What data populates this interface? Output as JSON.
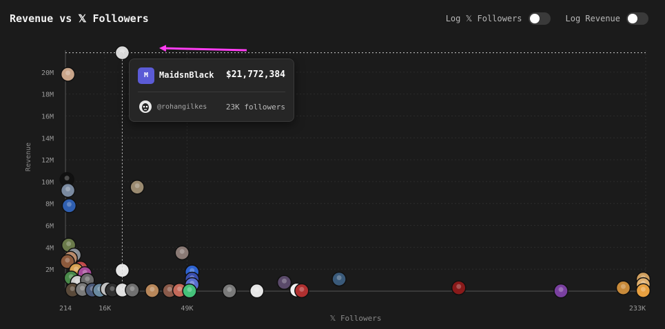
{
  "header": {
    "title": "Revenue vs 𝕏 Followers",
    "toggle_log_followers": "Log 𝕏 Followers",
    "toggle_log_revenue": "Log Revenue"
  },
  "tooltip": {
    "logo_letter": "M",
    "name": "MaidsnBlack",
    "revenue": "$21,772,384",
    "handle": "@rohangilkes",
    "followers": "23K followers"
  },
  "chart_data": {
    "type": "scatter",
    "title": "Revenue vs 𝕏 Followers",
    "xlabel": "𝕏 Followers",
    "ylabel": "Revenue",
    "xlim": [
      214,
      233000
    ],
    "ylim": [
      0,
      22000000
    ],
    "x_scale": "linear",
    "y_scale": "linear",
    "grid": true,
    "x_ticks": [
      {
        "value": 214,
        "label": "214"
      },
      {
        "value": 16000,
        "label": "16K"
      },
      {
        "value": 49000,
        "label": "49K"
      },
      {
        "value": 233000,
        "label": "233K"
      }
    ],
    "y_ticks": [
      {
        "value": 2000000,
        "label": "2M"
      },
      {
        "value": 4000000,
        "label": "4M"
      },
      {
        "value": 6000000,
        "label": "6M"
      },
      {
        "value": 8000000,
        "label": "8M"
      },
      {
        "value": 10000000,
        "label": "10M"
      },
      {
        "value": 12000000,
        "label": "12M"
      },
      {
        "value": 14000000,
        "label": "14M"
      },
      {
        "value": 16000000,
        "label": "16M"
      },
      {
        "value": 18000000,
        "label": "18M"
      },
      {
        "value": 20000000,
        "label": "20M"
      }
    ],
    "highlight": {
      "x": 23000,
      "y": 21772384
    },
    "points": [
      {
        "x": 23000,
        "y": 21772384,
        "color": "#d9d9d9"
      },
      {
        "x": 1200,
        "y": 19800000,
        "color": "#c9a58a"
      },
      {
        "x": 29000,
        "y": 9500000,
        "color": "#9a8a70"
      },
      {
        "x": 800,
        "y": 10200000,
        "color": "#111111"
      },
      {
        "x": 1200,
        "y": 9200000,
        "color": "#7a8aa0"
      },
      {
        "x": 1700,
        "y": 7800000,
        "color": "#2f5fb0"
      },
      {
        "x": 1500,
        "y": 4200000,
        "color": "#6a7a4a"
      },
      {
        "x": 3700,
        "y": 3300000,
        "color": "#8a8f96"
      },
      {
        "x": 2200,
        "y": 3000000,
        "color": "#b98a6a"
      },
      {
        "x": 1000,
        "y": 2700000,
        "color": "#8c5a3c"
      },
      {
        "x": 6300,
        "y": 2100000,
        "color": "#c14b4b"
      },
      {
        "x": 4500,
        "y": 1900000,
        "color": "#d6a050"
      },
      {
        "x": 8000,
        "y": 1600000,
        "color": "#a64a9a"
      },
      {
        "x": 23000,
        "y": 1900000,
        "color": "#e6e6e6"
      },
      {
        "x": 47000,
        "y": 3500000,
        "color": "#8a7a75"
      },
      {
        "x": 51000,
        "y": 1750000,
        "color": "#2e63d0"
      },
      {
        "x": 51000,
        "y": 1100000,
        "color": "#3a4fb0"
      },
      {
        "x": 51000,
        "y": 600000,
        "color": "#5a6fd0"
      },
      {
        "x": 2500,
        "y": 1200000,
        "color": "#4a8a4a"
      },
      {
        "x": 5000,
        "y": 800000,
        "color": "#d0d0d0"
      },
      {
        "x": 9000,
        "y": 1000000,
        "color": "#6a6a6a"
      },
      {
        "x": 3000,
        "y": 100000,
        "color": "#5a4a3a"
      },
      {
        "x": 7000,
        "y": 150000,
        "color": "#7a7a7a"
      },
      {
        "x": 11000,
        "y": 100000,
        "color": "#4a5a7a"
      },
      {
        "x": 14000,
        "y": 80000,
        "color": "#6a8aa0"
      },
      {
        "x": 17000,
        "y": 200000,
        "color": "#c0c0c0"
      },
      {
        "x": 19000,
        "y": 100000,
        "color": "#303030"
      },
      {
        "x": 23000,
        "y": 100000,
        "color": "#e0e0e0"
      },
      {
        "x": 27000,
        "y": 100000,
        "color": "#707070"
      },
      {
        "x": 35000,
        "y": 50000,
        "color": "#b8875a"
      },
      {
        "x": 42000,
        "y": 50000,
        "color": "#8a5a4a"
      },
      {
        "x": 46000,
        "y": 80000,
        "color": "#c56a5a"
      },
      {
        "x": 50000,
        "y": 20000,
        "color": "#45c27a"
      },
      {
        "x": 66000,
        "y": 20000,
        "color": "#7a7a7a"
      },
      {
        "x": 77000,
        "y": 20000,
        "color": "#e6e6e6"
      },
      {
        "x": 88000,
        "y": 800000,
        "color": "#5a4a6a"
      },
      {
        "x": 93000,
        "y": 100000,
        "color": "#f0f0f0"
      },
      {
        "x": 95000,
        "y": 40000,
        "color": "#b03030"
      },
      {
        "x": 110000,
        "y": 1100000,
        "color": "#3a5a7a"
      },
      {
        "x": 158000,
        "y": 300000,
        "color": "#8a1a1a"
      },
      {
        "x": 199000,
        "y": 20000,
        "color": "#7a40a0"
      },
      {
        "x": 224000,
        "y": 300000,
        "color": "#c88a3a"
      },
      {
        "x": 232000,
        "y": 1100000,
        "color": "#d0a060"
      },
      {
        "x": 232000,
        "y": 600000,
        "color": "#e0b070"
      },
      {
        "x": 232000,
        "y": 50000,
        "color": "#e8a040"
      }
    ]
  }
}
